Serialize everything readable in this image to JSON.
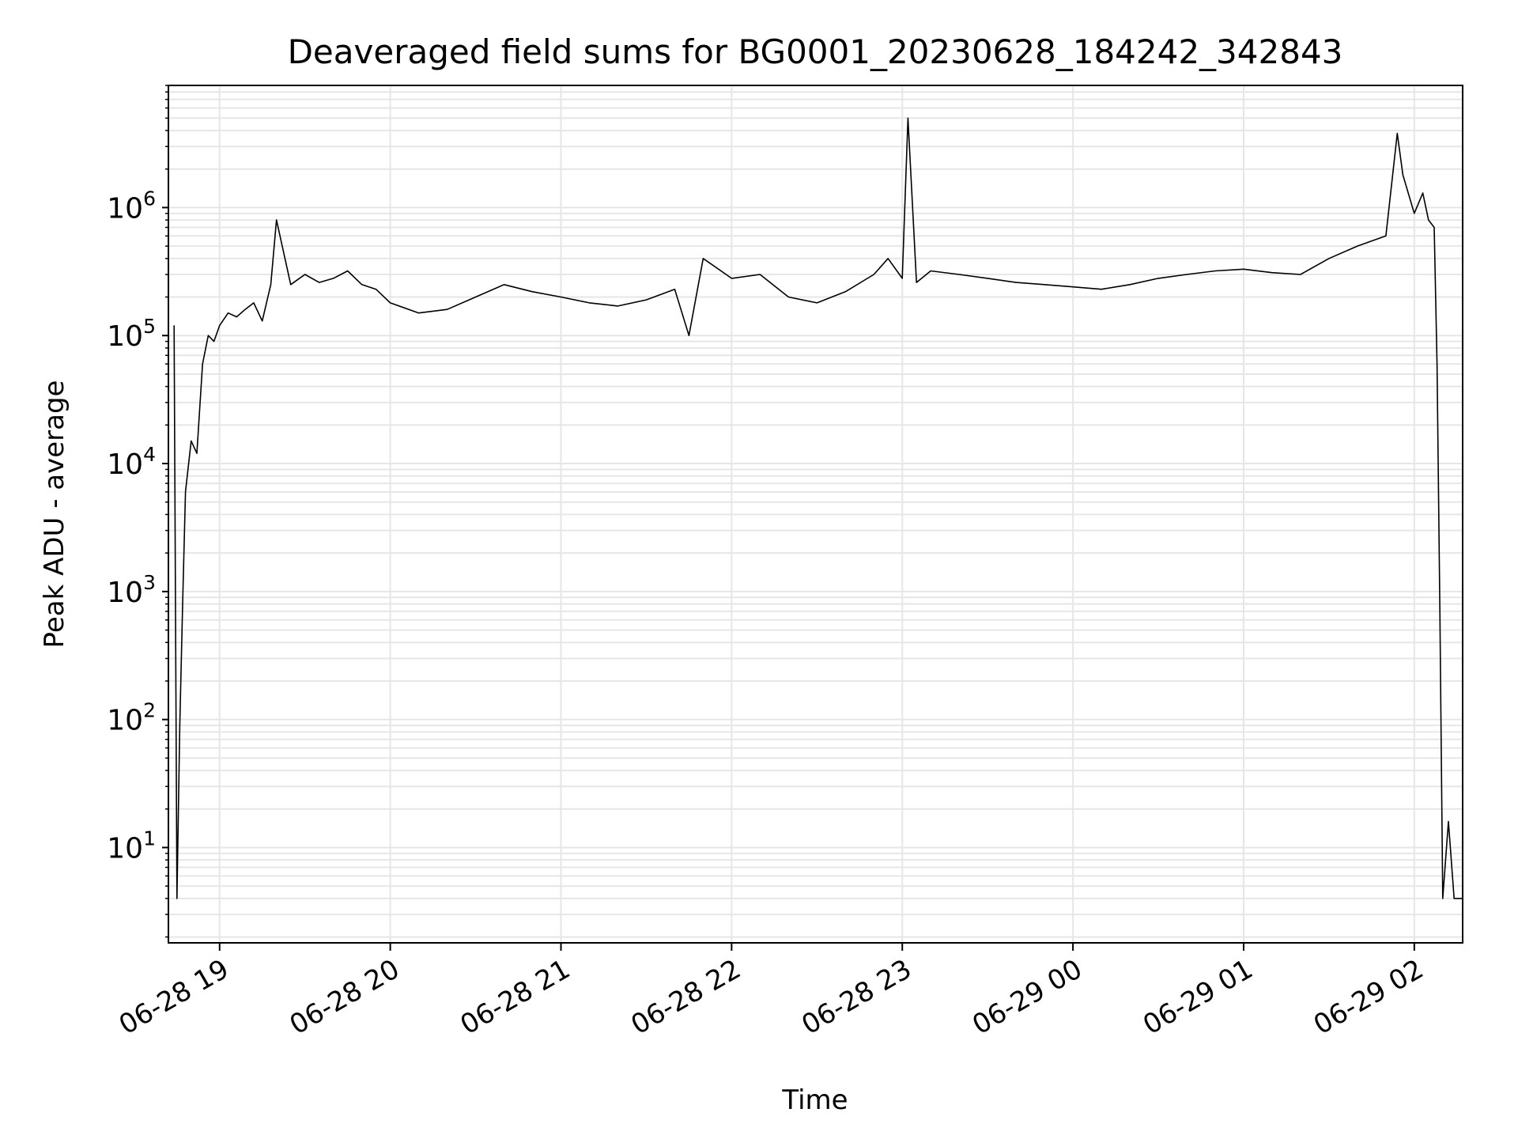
{
  "chart_data": {
    "type": "line",
    "title": "Deaveraged field sums for BG0001_20230628_184242_342843",
    "xlabel": "Time",
    "ylabel": "Peak ADU - average",
    "x_scale": "time",
    "y_scale": "log",
    "xlim": [
      "2023-06-28 18:42",
      "2023-06-29 02:17"
    ],
    "ylim": [
      1.8,
      9000000
    ],
    "x_ticks": [
      "06-28 19",
      "06-28 20",
      "06-28 21",
      "06-28 22",
      "06-28 23",
      "06-29 00",
      "06-29 01",
      "06-29 02"
    ],
    "y_ticks": [
      {
        "base": "10",
        "exp": "1",
        "value": 10
      },
      {
        "base": "10",
        "exp": "2",
        "value": 100
      },
      {
        "base": "10",
        "exp": "3",
        "value": 1000
      },
      {
        "base": "10",
        "exp": "4",
        "value": 10000
      },
      {
        "base": "10",
        "exp": "5",
        "value": 100000
      },
      {
        "base": "10",
        "exp": "6",
        "value": 1000000
      }
    ],
    "grid": true,
    "line_color": "#000000",
    "grid_color": "#e6e6e6",
    "series": [
      {
        "x": [
          "2023-06-28 18:44",
          "2023-06-28 18:45",
          "2023-06-28 18:46",
          "2023-06-28 18:47",
          "2023-06-28 18:48",
          "2023-06-28 18:50",
          "2023-06-28 18:52",
          "2023-06-28 18:54",
          "2023-06-28 18:56",
          "2023-06-28 18:58",
          "2023-06-28 19:00",
          "2023-06-28 19:03",
          "2023-06-28 19:06",
          "2023-06-28 19:09",
          "2023-06-28 19:12",
          "2023-06-28 19:15",
          "2023-06-28 19:18",
          "2023-06-28 19:20",
          "2023-06-28 19:25",
          "2023-06-28 19:30",
          "2023-06-28 19:35",
          "2023-06-28 19:40",
          "2023-06-28 19:45",
          "2023-06-28 19:50",
          "2023-06-28 19:55",
          "2023-06-28 20:00",
          "2023-06-28 20:10",
          "2023-06-28 20:20",
          "2023-06-28 20:30",
          "2023-06-28 20:40",
          "2023-06-28 20:50",
          "2023-06-28 21:00",
          "2023-06-28 21:10",
          "2023-06-28 21:20",
          "2023-06-28 21:30",
          "2023-06-28 21:40",
          "2023-06-28 21:45",
          "2023-06-28 21:50",
          "2023-06-28 22:00",
          "2023-06-28 22:10",
          "2023-06-28 22:20",
          "2023-06-28 22:30",
          "2023-06-28 22:40",
          "2023-06-28 22:50",
          "2023-06-28 22:55",
          "2023-06-28 23:00",
          "2023-06-28 23:02",
          "2023-06-28 23:05",
          "2023-06-28 23:10",
          "2023-06-28 23:20",
          "2023-06-28 23:30",
          "2023-06-28 23:40",
          "2023-06-28 23:50",
          "2023-06-29 00:00",
          "2023-06-29 00:10",
          "2023-06-29 00:20",
          "2023-06-29 00:30",
          "2023-06-29 00:40",
          "2023-06-29 00:50",
          "2023-06-29 01:00",
          "2023-06-29 01:10",
          "2023-06-29 01:20",
          "2023-06-29 01:30",
          "2023-06-29 01:40",
          "2023-06-29 01:50",
          "2023-06-29 01:54",
          "2023-06-29 01:56",
          "2023-06-29 02:00",
          "2023-06-29 02:03",
          "2023-06-29 02:05",
          "2023-06-29 02:07",
          "2023-06-29 02:08",
          "2023-06-29 02:09",
          "2023-06-29 02:10",
          "2023-06-29 02:12",
          "2023-06-29 02:14",
          "2023-06-29 02:17"
        ],
        "y": [
          120000,
          4,
          90,
          800,
          6000,
          15000,
          12000,
          60000,
          100000,
          90000,
          120000,
          150000,
          140000,
          160000,
          180000,
          130000,
          250000,
          800000,
          250000,
          300000,
          260000,
          280000,
          320000,
          250000,
          230000,
          180000,
          150000,
          160000,
          200000,
          250000,
          220000,
          200000,
          180000,
          170000,
          190000,
          230000,
          100000,
          400000,
          280000,
          300000,
          200000,
          180000,
          220000,
          300000,
          400000,
          280000,
          5000000,
          260000,
          320000,
          300000,
          280000,
          260000,
          250000,
          240000,
          230000,
          250000,
          280000,
          300000,
          320000,
          330000,
          310000,
          300000,
          400000,
          500000,
          600000,
          3800000,
          1800000,
          900000,
          1300000,
          800000,
          700000,
          60000,
          700,
          4,
          16,
          4,
          4
        ]
      }
    ]
  }
}
